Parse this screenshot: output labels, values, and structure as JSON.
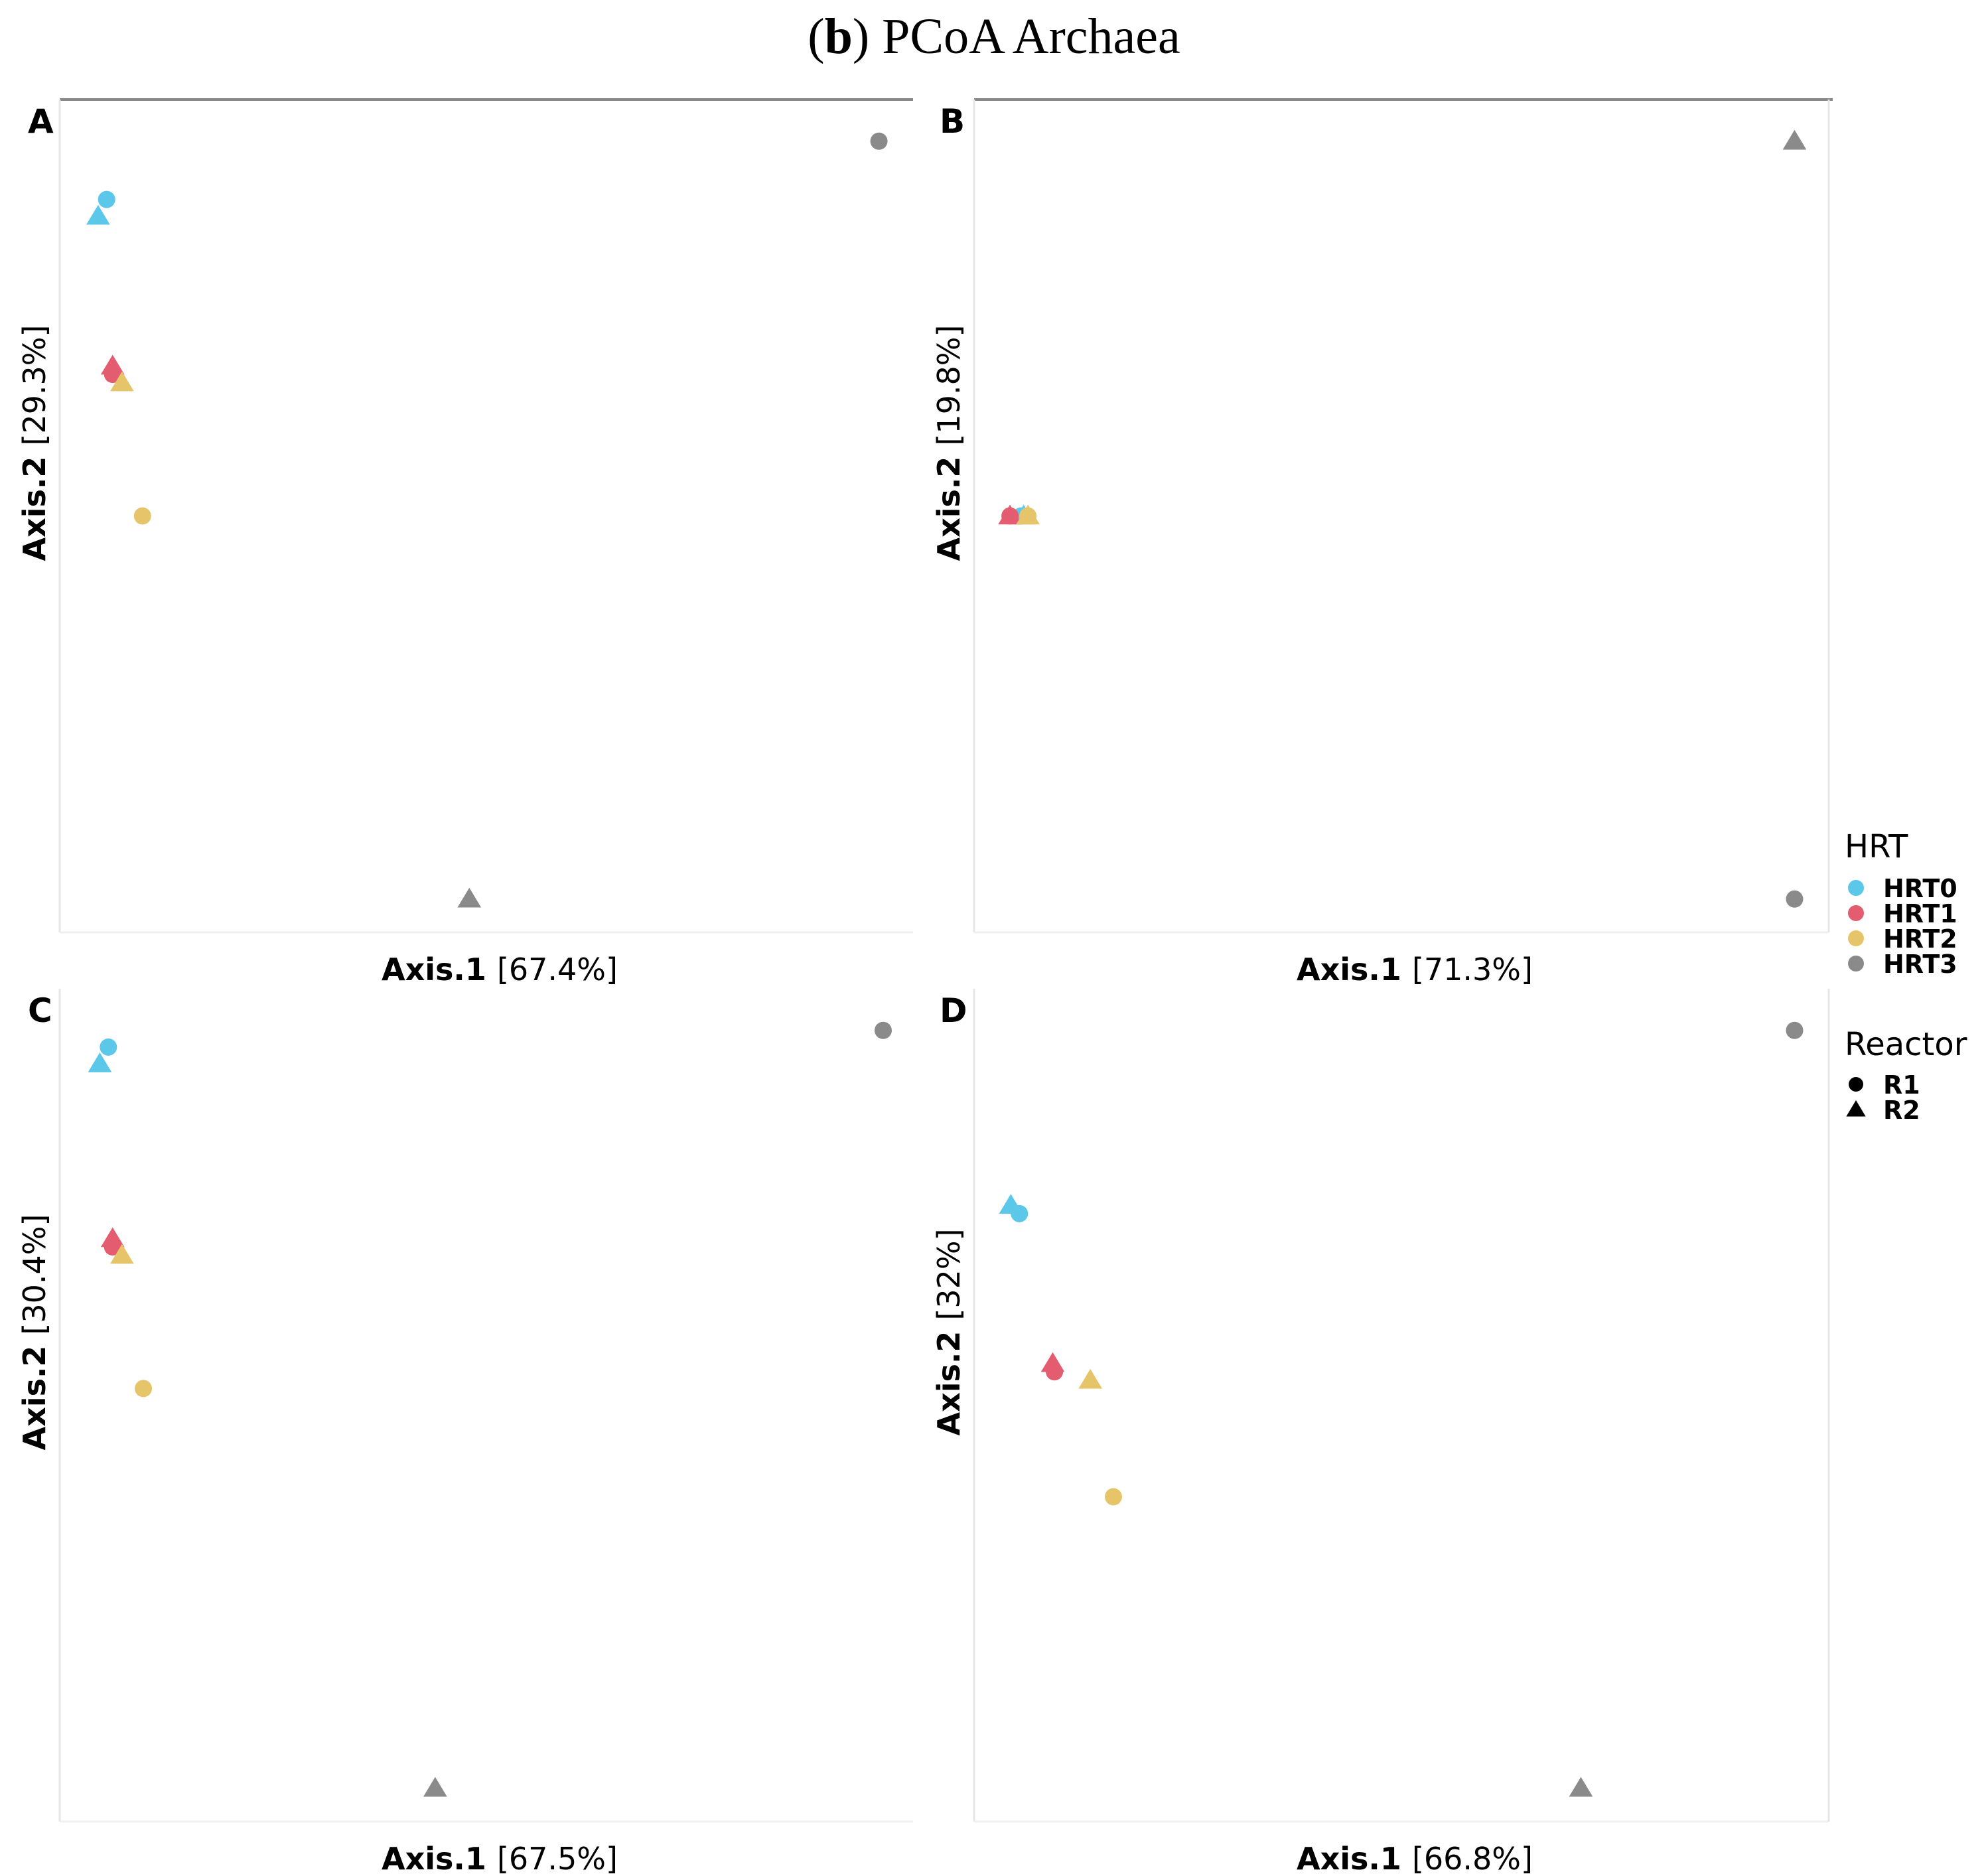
{
  "figure": {
    "title_prefix_open": "(",
    "title_bold": "b",
    "title_rest": ") PCoA Archaea"
  },
  "colors": {
    "HRT0": "#5bc8ea",
    "HRT1": "#e35c70",
    "HRT2": "#e6c56a",
    "HRT3": "#8a8a8a"
  },
  "legend": {
    "color_title": "HRT",
    "color_entries": [
      "HRT0",
      "HRT1",
      "HRT2",
      "HRT3"
    ],
    "shape_title": "Reactor",
    "shape_entries": [
      {
        "label": "R1",
        "shape": "circle"
      },
      {
        "label": "R2",
        "shape": "triangle"
      }
    ]
  },
  "chart_data": [
    {
      "type": "scatter",
      "panel_label": "A",
      "xlabel": "Axis.1",
      "xlabel_pct": "[67.4%]",
      "ylabel": "Axis.2",
      "ylabel_pct": "[29.3%]",
      "xlim": [
        0,
        100
      ],
      "ylim": [
        0,
        100
      ],
      "points": [
        {
          "hrt": "HRT0",
          "reactor": "R1",
          "x": 5.5,
          "y": 88
        },
        {
          "hrt": "HRT0",
          "reactor": "R2",
          "x": 4.5,
          "y": 86
        },
        {
          "hrt": "HRT1",
          "reactor": "R1",
          "x": 6.2,
          "y": 67
        },
        {
          "hrt": "HRT1",
          "reactor": "R2",
          "x": 6.2,
          "y": 68
        },
        {
          "hrt": "HRT2",
          "reactor": "R2",
          "x": 7.3,
          "y": 66
        },
        {
          "hrt": "HRT2",
          "reactor": "R1",
          "x": 9.7,
          "y": 50
        },
        {
          "hrt": "HRT3",
          "reactor": "R1",
          "x": 96,
          "y": 95
        },
        {
          "hrt": "HRT3",
          "reactor": "R2",
          "x": 48,
          "y": 4
        }
      ]
    },
    {
      "type": "scatter",
      "panel_label": "B",
      "xlabel": "Axis.1",
      "xlabel_pct": "[71.3%]",
      "ylabel": "Axis.2",
      "ylabel_pct": "[19.8%]",
      "xlim": [
        0,
        100
      ],
      "ylim": [
        0,
        100
      ],
      "points": [
        {
          "hrt": "HRT0",
          "reactor": "R1",
          "x": 5.5,
          "y": 50
        },
        {
          "hrt": "HRT0",
          "reactor": "R2",
          "x": 5.8,
          "y": 50
        },
        {
          "hrt": "HRT1",
          "reactor": "R1",
          "x": 4.2,
          "y": 50
        },
        {
          "hrt": "HRT1",
          "reactor": "R2",
          "x": 4.2,
          "y": 50
        },
        {
          "hrt": "HRT2",
          "reactor": "R1",
          "x": 6.3,
          "y": 50
        },
        {
          "hrt": "HRT2",
          "reactor": "R2",
          "x": 6.3,
          "y": 50
        },
        {
          "hrt": "HRT3",
          "reactor": "R2",
          "x": 96,
          "y": 95
        },
        {
          "hrt": "HRT3",
          "reactor": "R1",
          "x": 96,
          "y": 4
        }
      ]
    },
    {
      "type": "scatter",
      "panel_label": "C",
      "xlabel": "Axis.1",
      "xlabel_pct": "[67.5%]",
      "ylabel": "Axis.2",
      "ylabel_pct": "[30.4%]",
      "xlim": [
        0,
        100
      ],
      "ylim": [
        0,
        100
      ],
      "points": [
        {
          "hrt": "HRT0",
          "reactor": "R1",
          "x": 5.7,
          "y": 93
        },
        {
          "hrt": "HRT0",
          "reactor": "R2",
          "x": 4.7,
          "y": 91
        },
        {
          "hrt": "HRT1",
          "reactor": "R1",
          "x": 6.2,
          "y": 69
        },
        {
          "hrt": "HRT1",
          "reactor": "R2",
          "x": 6.2,
          "y": 70
        },
        {
          "hrt": "HRT2",
          "reactor": "R2",
          "x": 7.3,
          "y": 68
        },
        {
          "hrt": "HRT2",
          "reactor": "R1",
          "x": 9.8,
          "y": 52
        },
        {
          "hrt": "HRT3",
          "reactor": "R1",
          "x": 96.5,
          "y": 95
        },
        {
          "hrt": "HRT3",
          "reactor": "R2",
          "x": 44,
          "y": 4
        }
      ]
    },
    {
      "type": "scatter",
      "panel_label": "D",
      "xlabel": "Axis.1",
      "xlabel_pct": "[66.8%]",
      "ylabel": "Axis.2",
      "ylabel_pct": "[32%]",
      "xlim": [
        0,
        100
      ],
      "ylim": [
        0,
        100
      ],
      "points": [
        {
          "hrt": "HRT0",
          "reactor": "R2",
          "x": 4.3,
          "y": 74
        },
        {
          "hrt": "HRT0",
          "reactor": "R1",
          "x": 5.3,
          "y": 73
        },
        {
          "hrt": "HRT1",
          "reactor": "R1",
          "x": 9.4,
          "y": 54
        },
        {
          "hrt": "HRT1",
          "reactor": "R2",
          "x": 9.2,
          "y": 55
        },
        {
          "hrt": "HRT2",
          "reactor": "R2",
          "x": 13.6,
          "y": 53
        },
        {
          "hrt": "HRT2",
          "reactor": "R1",
          "x": 16.3,
          "y": 39
        },
        {
          "hrt": "HRT3",
          "reactor": "R1",
          "x": 96,
          "y": 95
        },
        {
          "hrt": "HRT3",
          "reactor": "R2",
          "x": 71,
          "y": 4
        }
      ]
    }
  ]
}
